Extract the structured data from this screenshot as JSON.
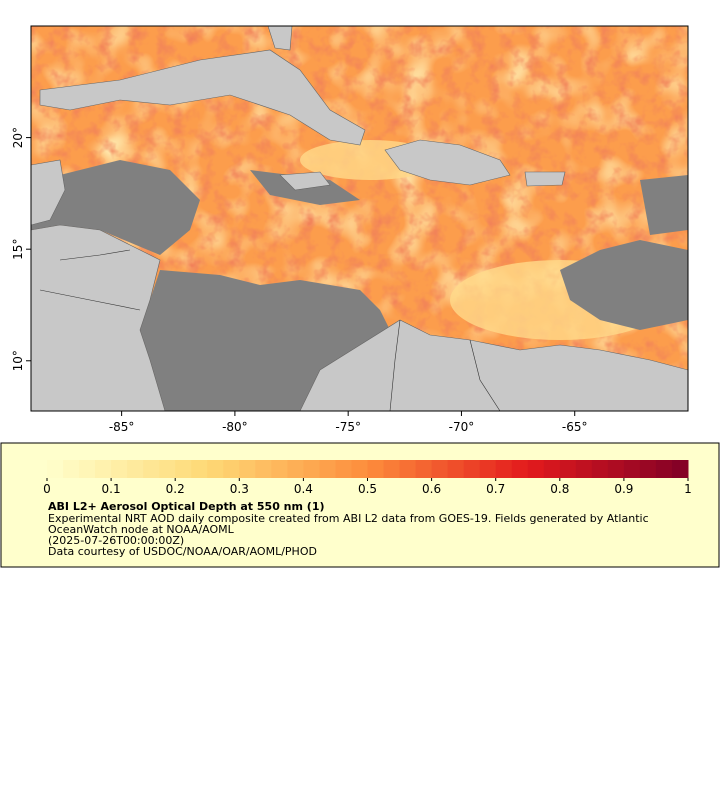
{
  "map": {
    "xlim": [
      -89,
      -60
    ],
    "ylim": [
      7.75,
      25
    ],
    "xticks": [
      {
        "value": -85,
        "label": "-85°"
      },
      {
        "value": -80,
        "label": "-80°"
      },
      {
        "value": -75,
        "label": "-75°"
      },
      {
        "value": -70,
        "label": "-70°"
      },
      {
        "value": -65,
        "label": "-65°"
      }
    ],
    "yticks": [
      {
        "value": 10,
        "label": "10°"
      },
      {
        "value": 15,
        "label": "15°"
      },
      {
        "value": 20,
        "label": "20°"
      }
    ]
  },
  "legend": {
    "colorbar": {
      "range": [
        0,
        1
      ],
      "ticks": [
        0,
        0.1,
        0.2,
        0.3,
        0.4,
        0.5,
        0.6,
        0.7,
        0.8,
        0.9,
        1
      ],
      "colormap": [
        "#ffffcc",
        "#fed976",
        "#fd8d3c",
        "#e31a1c",
        "#800026"
      ]
    },
    "title": "ABI L2+ Aerosol Optical Depth at 550 nm (1)",
    "lines": [
      "Experimental NRT AOD daily composite created from ABI L2 data from GOES-19. Fields generated by Atlantic",
      "OceanWatch node at NOAA/AOML",
      "(2025-07-26T00:00:00Z)",
      "Data courtesy of USDOC/NOAA/OAR/AOML/PHOD"
    ]
  }
}
